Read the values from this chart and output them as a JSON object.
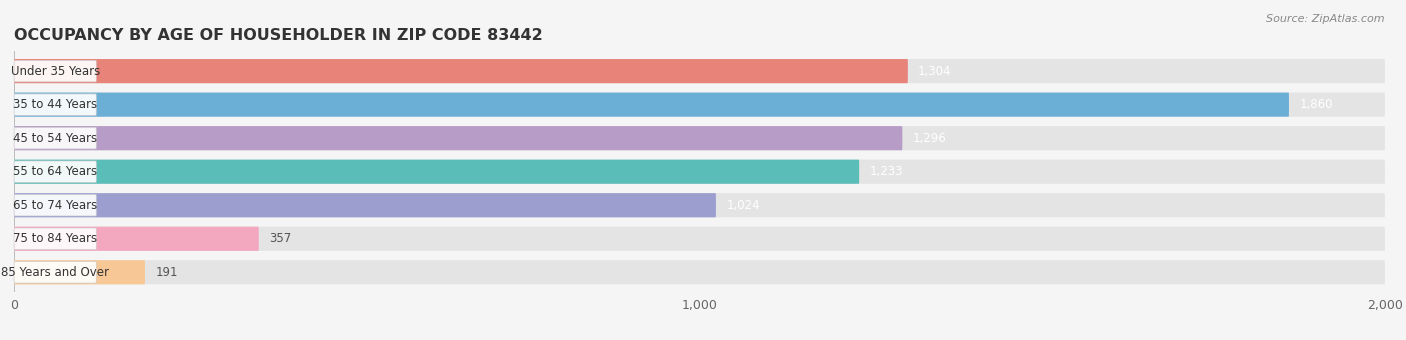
{
  "title": "OCCUPANCY BY AGE OF HOUSEHOLDER IN ZIP CODE 83442",
  "source": "Source: ZipAtlas.com",
  "categories": [
    "Under 35 Years",
    "35 to 44 Years",
    "45 to 54 Years",
    "55 to 64 Years",
    "65 to 74 Years",
    "75 to 84 Years",
    "85 Years and Over"
  ],
  "values": [
    1304,
    1860,
    1296,
    1233,
    1024,
    357,
    191
  ],
  "bar_colors": [
    "#E8837A",
    "#6BAED6",
    "#B89CC8",
    "#5BBDB8",
    "#9B9ECE",
    "#F4A8C0",
    "#F7C896"
  ],
  "background_color": "#f5f5f5",
  "bar_bg_color": "#e4e4e4",
  "xlim": [
    0,
    2000
  ],
  "xticks": [
    0,
    1000,
    2000
  ],
  "title_fontsize": 11.5,
  "label_fontsize": 8.5,
  "value_fontsize": 8.5
}
